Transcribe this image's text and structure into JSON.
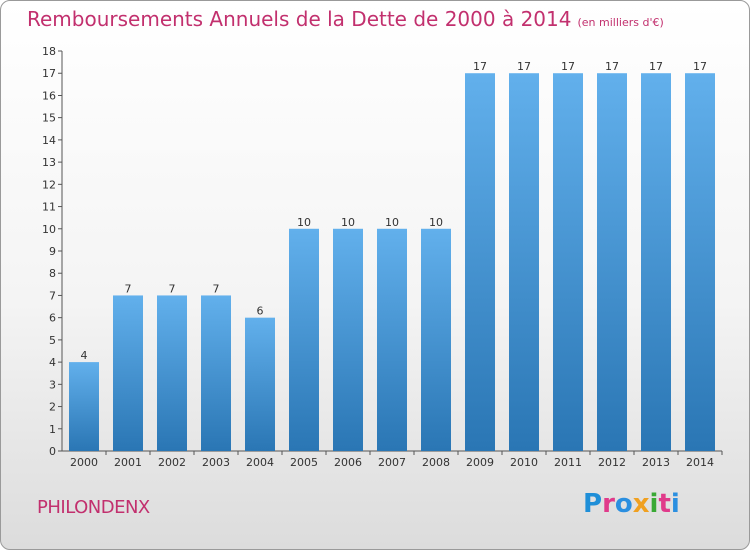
{
  "header": {
    "title": "Remboursements Annuels de la Dette de 2000 à 2014",
    "subtitle": "(en milliers d'€)"
  },
  "footer": {
    "commune": "PHILONDENX",
    "logo_text": "Proxiti"
  },
  "colors": {
    "title": "#c2306e",
    "bar_top": "#62b0ec",
    "bar_bottom": "#2a76b4",
    "logo": [
      "#1f8fd8",
      "#e03a8a",
      "#2b8fe0",
      "#f0a020",
      "#39a935",
      "#e03a8a",
      "#2b8fe0"
    ]
  },
  "chart_data": {
    "type": "bar",
    "title": "Remboursements Annuels de la Dette de 2000 à 2014",
    "subtitle": "(en milliers d'€)",
    "xlabel": "",
    "ylabel": "",
    "categories": [
      "2000",
      "2001",
      "2002",
      "2003",
      "2004",
      "2005",
      "2006",
      "2007",
      "2008",
      "2009",
      "2010",
      "2011",
      "2012",
      "2013",
      "2014"
    ],
    "values": [
      4,
      7,
      7,
      7,
      6,
      10,
      10,
      10,
      10,
      17,
      17,
      17,
      17,
      17,
      17
    ],
    "ylim": [
      0,
      18
    ],
    "yticks": [
      0,
      1,
      2,
      3,
      4,
      5,
      6,
      7,
      8,
      9,
      10,
      11,
      12,
      13,
      14,
      15,
      16,
      17,
      18
    ],
    "grid": false,
    "data_labels": true
  }
}
